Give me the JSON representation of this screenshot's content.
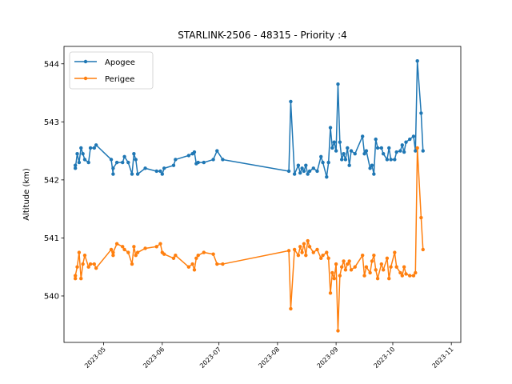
{
  "chart_data": {
    "type": "line",
    "title": "STARLINK-2506 - 48315 - Priority :4",
    "xlabel": "",
    "ylabel": "Altitude (km)",
    "x_axis": {
      "type": "date",
      "range": [
        "2023-04-10",
        "2023-11-06"
      ],
      "ticks": [
        "2023-05-01",
        "2023-06-01",
        "2023-07-01",
        "2023-08-01",
        "2023-09-01",
        "2023-10-01",
        "2023-11-01"
      ],
      "tick_labels": [
        "2023-05",
        "2023-06",
        "2023-07",
        "2023-08",
        "2023-09",
        "2023-10",
        "2023-11"
      ]
    },
    "y_axis": {
      "range": [
        539.2,
        544.3
      ],
      "ticks": [
        540,
        541,
        542,
        543,
        544
      ]
    },
    "legend": "top-left",
    "grid": false,
    "series": [
      {
        "name": "Apogee",
        "color": "#1f77b4",
        "points": [
          [
            "2023-04-16",
            542.25
          ],
          [
            "2023-04-16",
            542.2
          ],
          [
            "2023-04-17",
            542.45
          ],
          [
            "2023-04-18",
            542.3
          ],
          [
            "2023-04-19",
            542.55
          ],
          [
            "2023-04-20",
            542.45
          ],
          [
            "2023-04-21",
            542.35
          ],
          [
            "2023-04-23",
            542.3
          ],
          [
            "2023-04-24",
            542.55
          ],
          [
            "2023-04-26",
            542.55
          ],
          [
            "2023-04-27",
            542.6
          ],
          [
            "2023-05-05",
            542.35
          ],
          [
            "2023-05-06",
            542.1
          ],
          [
            "2023-05-06",
            542.2
          ],
          [
            "2023-05-08",
            542.3
          ],
          [
            "2023-05-11",
            542.3
          ],
          [
            "2023-05-12",
            542.4
          ],
          [
            "2023-05-14",
            542.3
          ],
          [
            "2023-05-16",
            542.1
          ],
          [
            "2023-05-17",
            542.45
          ],
          [
            "2023-05-18",
            542.35
          ],
          [
            "2023-05-19",
            542.1
          ],
          [
            "2023-05-23",
            542.2
          ],
          [
            "2023-05-29",
            542.15
          ],
          [
            "2023-05-31",
            542.15
          ],
          [
            "2023-06-01",
            542.1
          ],
          [
            "2023-06-02",
            542.2
          ],
          [
            "2023-06-07",
            542.25
          ],
          [
            "2023-06-08",
            542.35
          ],
          [
            "2023-06-15",
            542.42
          ],
          [
            "2023-06-17",
            542.45
          ],
          [
            "2023-06-18",
            542.48
          ],
          [
            "2023-06-19",
            542.28
          ],
          [
            "2023-06-20",
            542.3
          ],
          [
            "2023-06-23",
            542.3
          ],
          [
            "2023-06-28",
            542.35
          ],
          [
            "2023-06-30",
            542.5
          ],
          [
            "2023-07-03",
            542.35
          ],
          [
            "2023-08-07",
            542.15
          ],
          [
            "2023-08-08",
            543.35
          ],
          [
            "2023-08-10",
            542.1
          ],
          [
            "2023-08-12",
            542.25
          ],
          [
            "2023-08-13",
            542.12
          ],
          [
            "2023-08-14",
            542.2
          ],
          [
            "2023-08-15",
            542.15
          ],
          [
            "2023-08-16",
            542.25
          ],
          [
            "2023-08-17",
            542.1
          ],
          [
            "2023-08-18",
            542.15
          ],
          [
            "2023-08-20",
            542.2
          ],
          [
            "2023-08-22",
            542.15
          ],
          [
            "2023-08-24",
            542.4
          ],
          [
            "2023-08-25",
            542.3
          ],
          [
            "2023-08-27",
            542.05
          ],
          [
            "2023-08-28",
            542.3
          ],
          [
            "2023-08-29",
            542.9
          ],
          [
            "2023-08-30",
            542.55
          ],
          [
            "2023-08-31",
            542.65
          ],
          [
            "2023-09-01",
            542.5
          ],
          [
            "2023-09-02",
            543.65
          ],
          [
            "2023-09-03",
            542.65
          ],
          [
            "2023-09-04",
            542.35
          ],
          [
            "2023-09-05",
            542.45
          ],
          [
            "2023-09-06",
            542.35
          ],
          [
            "2023-09-07",
            542.55
          ],
          [
            "2023-09-08",
            542.25
          ],
          [
            "2023-09-09",
            542.5
          ],
          [
            "2023-09-11",
            542.45
          ],
          [
            "2023-09-15",
            542.75
          ],
          [
            "2023-09-16",
            542.45
          ],
          [
            "2023-09-17",
            542.5
          ],
          [
            "2023-09-19",
            542.2
          ],
          [
            "2023-09-20",
            542.25
          ],
          [
            "2023-09-21",
            542.1
          ],
          [
            "2023-09-22",
            542.7
          ],
          [
            "2023-09-23",
            542.55
          ],
          [
            "2023-09-25",
            542.55
          ],
          [
            "2023-09-26",
            542.45
          ],
          [
            "2023-09-28",
            542.35
          ],
          [
            "2023-09-29",
            542.55
          ],
          [
            "2023-09-30",
            542.35
          ],
          [
            "2023-10-02",
            542.35
          ],
          [
            "2023-10-03",
            542.48
          ],
          [
            "2023-10-05",
            542.5
          ],
          [
            "2023-10-06",
            542.6
          ],
          [
            "2023-10-07",
            542.48
          ],
          [
            "2023-10-08",
            542.65
          ],
          [
            "2023-10-10",
            542.7
          ],
          [
            "2023-10-12",
            542.75
          ],
          [
            "2023-10-13",
            542.5
          ],
          [
            "2023-10-14",
            544.05
          ],
          [
            "2023-10-16",
            543.15
          ],
          [
            "2023-10-17",
            542.5
          ]
        ]
      },
      {
        "name": "Perigee",
        "color": "#ff7f0e",
        "points": [
          [
            "2023-04-16",
            540.3
          ],
          [
            "2023-04-16",
            540.35
          ],
          [
            "2023-04-17",
            540.5
          ],
          [
            "2023-04-18",
            540.75
          ],
          [
            "2023-04-19",
            540.3
          ],
          [
            "2023-04-20",
            540.55
          ],
          [
            "2023-04-21",
            540.7
          ],
          [
            "2023-04-23",
            540.5
          ],
          [
            "2023-04-24",
            540.55
          ],
          [
            "2023-04-26",
            540.55
          ],
          [
            "2023-04-27",
            540.48
          ],
          [
            "2023-05-05",
            540.8
          ],
          [
            "2023-05-06",
            540.7
          ],
          [
            "2023-05-06",
            540.75
          ],
          [
            "2023-05-08",
            540.9
          ],
          [
            "2023-05-11",
            540.85
          ],
          [
            "2023-05-12",
            540.8
          ],
          [
            "2023-05-14",
            540.75
          ],
          [
            "2023-05-16",
            540.55
          ],
          [
            "2023-05-17",
            540.85
          ],
          [
            "2023-05-18",
            540.7
          ],
          [
            "2023-05-19",
            540.75
          ],
          [
            "2023-05-23",
            540.82
          ],
          [
            "2023-05-29",
            540.85
          ],
          [
            "2023-05-31",
            540.9
          ],
          [
            "2023-06-01",
            540.75
          ],
          [
            "2023-06-02",
            540.72
          ],
          [
            "2023-06-07",
            540.65
          ],
          [
            "2023-06-08",
            540.7
          ],
          [
            "2023-06-15",
            540.5
          ],
          [
            "2023-06-17",
            540.55
          ],
          [
            "2023-06-18",
            540.45
          ],
          [
            "2023-06-19",
            540.65
          ],
          [
            "2023-06-20",
            540.7
          ],
          [
            "2023-06-23",
            540.75
          ],
          [
            "2023-06-28",
            540.72
          ],
          [
            "2023-06-30",
            540.55
          ],
          [
            "2023-07-03",
            540.55
          ],
          [
            "2023-08-07",
            540.78
          ],
          [
            "2023-08-08",
            539.78
          ],
          [
            "2023-08-10",
            540.8
          ],
          [
            "2023-08-12",
            540.7
          ],
          [
            "2023-08-13",
            540.85
          ],
          [
            "2023-08-14",
            540.75
          ],
          [
            "2023-08-15",
            540.9
          ],
          [
            "2023-08-16",
            540.7
          ],
          [
            "2023-08-17",
            540.95
          ],
          [
            "2023-08-18",
            540.85
          ],
          [
            "2023-08-20",
            540.75
          ],
          [
            "2023-08-22",
            540.8
          ],
          [
            "2023-08-24",
            540.65
          ],
          [
            "2023-08-25",
            540.7
          ],
          [
            "2023-08-27",
            540.75
          ],
          [
            "2023-08-28",
            540.65
          ],
          [
            "2023-08-29",
            540.05
          ],
          [
            "2023-08-30",
            540.4
          ],
          [
            "2023-08-31",
            540.3
          ],
          [
            "2023-09-01",
            540.55
          ],
          [
            "2023-09-02",
            539.4
          ],
          [
            "2023-09-03",
            540.35
          ],
          [
            "2023-09-04",
            540.5
          ],
          [
            "2023-09-05",
            540.6
          ],
          [
            "2023-09-06",
            540.45
          ],
          [
            "2023-09-07",
            540.55
          ],
          [
            "2023-09-08",
            540.6
          ],
          [
            "2023-09-09",
            540.45
          ],
          [
            "2023-09-11",
            540.5
          ],
          [
            "2023-09-15",
            540.7
          ],
          [
            "2023-09-16",
            540.35
          ],
          [
            "2023-09-17",
            540.5
          ],
          [
            "2023-09-19",
            540.4
          ],
          [
            "2023-09-20",
            540.6
          ],
          [
            "2023-09-21",
            540.7
          ],
          [
            "2023-09-22",
            540.45
          ],
          [
            "2023-09-23",
            540.3
          ],
          [
            "2023-09-25",
            540.55
          ],
          [
            "2023-09-26",
            540.45
          ],
          [
            "2023-09-28",
            540.65
          ],
          [
            "2023-09-29",
            540.3
          ],
          [
            "2023-09-30",
            540.5
          ],
          [
            "2023-10-02",
            540.75
          ],
          [
            "2023-10-03",
            540.5
          ],
          [
            "2023-10-05",
            540.4
          ],
          [
            "2023-10-06",
            540.35
          ],
          [
            "2023-10-07",
            540.5
          ],
          [
            "2023-10-08",
            540.38
          ],
          [
            "2023-10-10",
            540.35
          ],
          [
            "2023-10-12",
            540.35
          ],
          [
            "2023-10-13",
            540.4
          ],
          [
            "2023-10-14",
            542.55
          ],
          [
            "2023-10-16",
            541.35
          ],
          [
            "2023-10-17",
            540.8
          ]
        ]
      }
    ]
  }
}
